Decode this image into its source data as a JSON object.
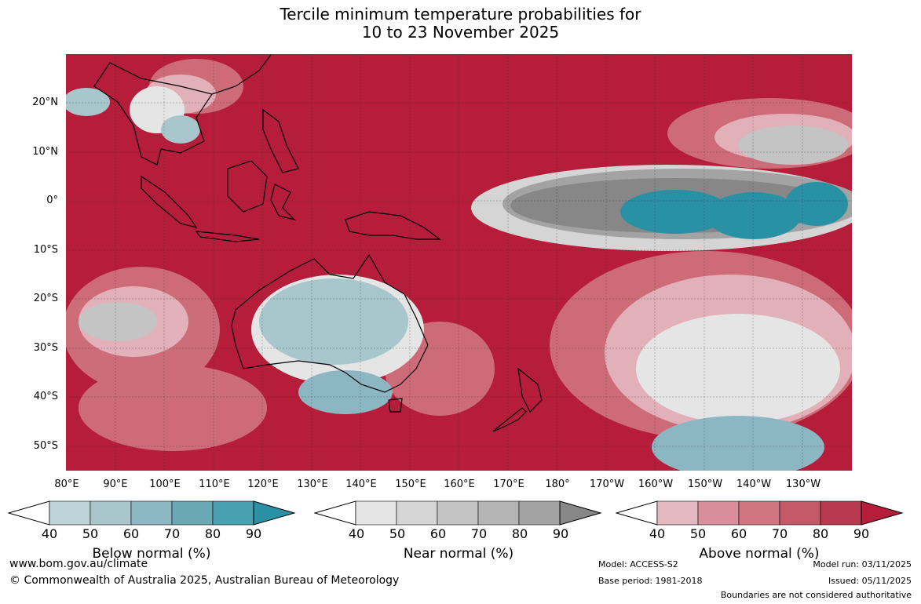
{
  "title": {
    "line1": "Tercile minimum temperature probabilities for",
    "line2": "10 to 23 November 2025"
  },
  "map": {
    "lat_labels": [
      "20°N",
      "10°N",
      "0°",
      "10°S",
      "20°S",
      "30°S",
      "40°S",
      "50°S"
    ],
    "lon_labels": [
      "80°E",
      "90°E",
      "100°E",
      "110°E",
      "120°E",
      "130°E",
      "140°E",
      "150°E",
      "160°E",
      "170°E",
      "180°",
      "170°W",
      "160°W",
      "150°W",
      "140°W",
      "130°W"
    ],
    "background_color": "#b51d3a"
  },
  "colorbars": [
    {
      "label": "Below normal (%)",
      "ticks": [
        "40",
        "50",
        "60",
        "70",
        "80",
        "90"
      ],
      "colors": [
        "#bcd4da",
        "#a8c7cd",
        "#8db6c3",
        "#6aa8b6",
        "#48a0b0",
        "#2a91a5"
      ]
    },
    {
      "label": "Near normal (%)",
      "ticks": [
        "40",
        "50",
        "60",
        "70",
        "80",
        "90"
      ],
      "colors": [
        "#e5e5e5",
        "#d5d5d5",
        "#c4c4c4",
        "#b4b4b4",
        "#a3a3a3",
        "#878787"
      ]
    },
    {
      "label": "Above normal (%)",
      "ticks": [
        "40",
        "50",
        "60",
        "70",
        "80",
        "90"
      ],
      "colors": [
        "#e4b8c0",
        "#d98f9b",
        "#cf7680",
        "#c45a68",
        "#b83a50",
        "#b51d3a"
      ]
    }
  ],
  "footer": {
    "site": "www.bom.gov.au/climate",
    "copyright": "© Commonwealth of Australia 2025, Australian Bureau of Meteorology",
    "model": "Model: ACCESS-S2",
    "base_period": "Base period: 1981-2018",
    "model_run": "Model run: 03/11/2025",
    "issued": "Issued: 05/11/2025",
    "boundaries": "Boundaries are not considered authoritative"
  }
}
